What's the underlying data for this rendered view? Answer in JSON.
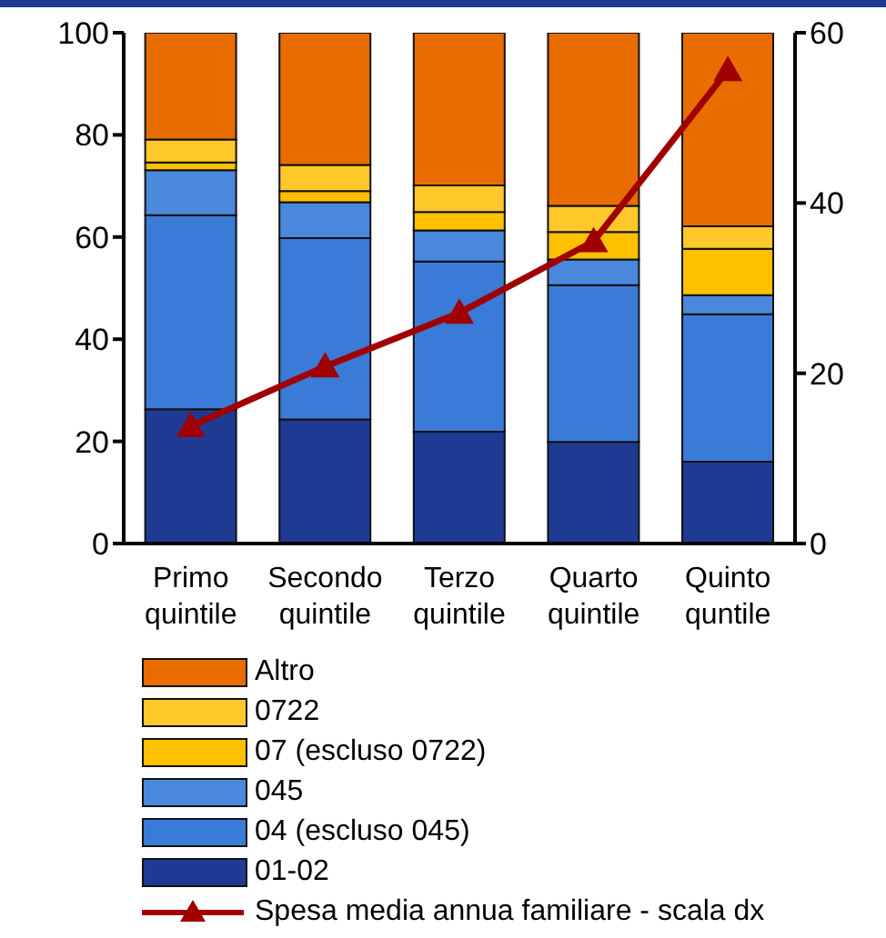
{
  "chart_data": {
    "type": "bar",
    "stacked": true,
    "categories": [
      "Primo quintile",
      "Secondo quintile",
      "Terzo quintile",
      "Quarto quintile",
      "Quinto quntile"
    ],
    "series": [
      {
        "name": "01-02",
        "color": "#1f3a93",
        "values": [
          26.3,
          24.3,
          21.9,
          19.9,
          16.0
        ]
      },
      {
        "name": "04 (escluso 045)",
        "color": "#3a7bd8",
        "values": [
          38.0,
          35.5,
          33.3,
          30.7,
          28.9
        ]
      },
      {
        "name": "045",
        "color": "#4a88dc",
        "values": [
          8.8,
          7.0,
          6.1,
          5.0,
          3.7
        ]
      },
      {
        "name": "07 (escluso 0722)",
        "color": "#ffc000",
        "values": [
          1.5,
          2.2,
          3.6,
          5.4,
          9.1
        ]
      },
      {
        "name": "0722",
        "color": "#ffc82a",
        "values": [
          4.5,
          5.1,
          5.2,
          5.1,
          4.4
        ]
      },
      {
        "name": "Altro",
        "color": "#e86c00",
        "values": [
          20.9,
          25.9,
          29.9,
          33.9,
          37.9
        ]
      },
      {
        "name": "Spesa media annua familiare - scala dx",
        "type": "line",
        "axis": "y2",
        "color": "#a00000",
        "marker": "triangle",
        "values": [
          13.8,
          20.8,
          27.1,
          35.5,
          55.6
        ]
      }
    ],
    "ylim": [
      0,
      100
    ],
    "yticks": [
      0,
      20,
      40,
      60,
      80,
      100
    ],
    "y2lim": [
      0,
      60
    ],
    "y2ticks": [
      0,
      20,
      40,
      60
    ],
    "legend": "bottom"
  }
}
